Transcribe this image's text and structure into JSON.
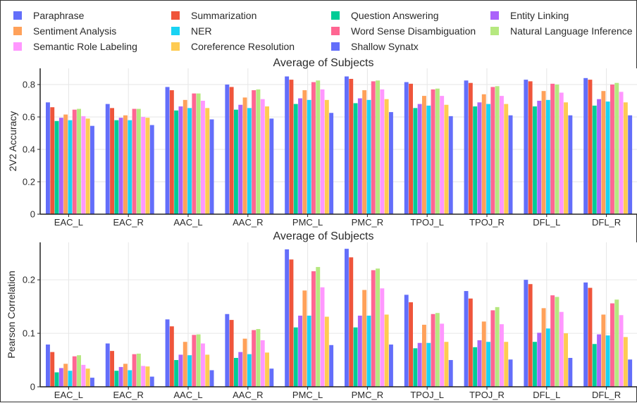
{
  "legend": [
    {
      "name": "Paraphrase",
      "color": "#636efa"
    },
    {
      "name": "Summarization",
      "color": "#ef553b"
    },
    {
      "name": "Question Answering",
      "color": "#00cc96"
    },
    {
      "name": "Entity Linking",
      "color": "#ab63fa"
    },
    {
      "name": "Sentiment Analysis",
      "color": "#ffa15a"
    },
    {
      "name": "NER",
      "color": "#19d3f3"
    },
    {
      "name": "Word Sense Disambiguation",
      "color": "#ff6692"
    },
    {
      "name": "Natural Language Inference",
      "color": "#b6e880"
    },
    {
      "name": "Semantic Role Labeling",
      "color": "#ff97ff"
    },
    {
      "name": "Coreference Resolution",
      "color": "#fecb52"
    },
    {
      "name": "Shallow Synatx",
      "color": "#636efa"
    }
  ],
  "chart_data": [
    {
      "type": "bar",
      "title": "Average of Subjects",
      "xlabel": "",
      "ylabel": "2V2 Accuracy",
      "ylim": [
        0,
        0.9
      ],
      "yticks": [
        0,
        0.2,
        0.4,
        0.6,
        0.8
      ],
      "ytick_labels": [
        "0",
        "0.2",
        "0.4",
        "0.6",
        "0.8"
      ],
      "categories": [
        "EAC_L",
        "EAC_R",
        "AAC_L",
        "AAC_R",
        "PMC_L",
        "PMC_R",
        "TPOJ_L",
        "TPOJ_R",
        "DFL_L",
        "DFL_R"
      ],
      "series": [
        {
          "name": "Paraphrase",
          "values": [
            0.69,
            0.68,
            0.785,
            0.8,
            0.85,
            0.85,
            0.815,
            0.825,
            0.83,
            0.84
          ]
        },
        {
          "name": "Summarization",
          "values": [
            0.66,
            0.655,
            0.765,
            0.785,
            0.83,
            0.835,
            0.805,
            0.81,
            0.82,
            0.83
          ]
        },
        {
          "name": "Question Answering",
          "values": [
            0.575,
            0.58,
            0.64,
            0.645,
            0.68,
            0.685,
            0.655,
            0.665,
            0.665,
            0.67
          ]
        },
        {
          "name": "Entity Linking",
          "values": [
            0.595,
            0.595,
            0.665,
            0.675,
            0.715,
            0.715,
            0.68,
            0.69,
            0.7,
            0.71
          ]
        },
        {
          "name": "Sentiment Analysis",
          "values": [
            0.615,
            0.61,
            0.705,
            0.72,
            0.765,
            0.765,
            0.73,
            0.74,
            0.76,
            0.76
          ]
        },
        {
          "name": "NER",
          "values": [
            0.58,
            0.58,
            0.655,
            0.655,
            0.705,
            0.705,
            0.67,
            0.68,
            0.705,
            0.695
          ]
        },
        {
          "name": "Word Sense Disambiguation",
          "values": [
            0.645,
            0.65,
            0.745,
            0.765,
            0.815,
            0.82,
            0.77,
            0.785,
            0.805,
            0.8
          ]
        },
        {
          "name": "Natural Language Inference",
          "values": [
            0.65,
            0.65,
            0.745,
            0.77,
            0.825,
            0.825,
            0.775,
            0.79,
            0.8,
            0.81
          ]
        },
        {
          "name": "Semantic Role Labeling",
          "values": [
            0.605,
            0.6,
            0.7,
            0.71,
            0.77,
            0.77,
            0.73,
            0.73,
            0.75,
            0.755
          ]
        },
        {
          "name": "Coreference Resolution",
          "values": [
            0.59,
            0.595,
            0.655,
            0.665,
            0.705,
            0.71,
            0.675,
            0.68,
            0.69,
            0.69
          ]
        },
        {
          "name": "Shallow Synatx",
          "values": [
            0.545,
            0.55,
            0.585,
            0.59,
            0.625,
            0.63,
            0.605,
            0.61,
            0.61,
            0.61
          ]
        }
      ]
    },
    {
      "type": "bar",
      "title": "Average of Subjects",
      "xlabel": "",
      "ylabel": "Pearson Correlation",
      "ylim": [
        0,
        0.27
      ],
      "yticks": [
        0,
        0.1,
        0.2
      ],
      "ytick_labels": [
        "0",
        "0.1",
        "0.2"
      ],
      "categories": [
        "EAC_L",
        "EAC_R",
        "AAC_L",
        "AAC_R",
        "PMC_L",
        "PMC_R",
        "TPOJ_L",
        "TPOJ_R",
        "DFL_L",
        "DFL_R"
      ],
      "series": [
        {
          "name": "Paraphrase",
          "values": [
            0.079,
            0.081,
            0.126,
            0.136,
            0.257,
            0.258,
            0.172,
            0.179,
            0.2,
            0.195
          ]
        },
        {
          "name": "Summarization",
          "values": [
            0.065,
            0.067,
            0.113,
            0.125,
            0.238,
            0.242,
            0.158,
            0.165,
            0.192,
            0.185
          ]
        },
        {
          "name": "Question Answering",
          "values": [
            0.027,
            0.03,
            0.05,
            0.054,
            0.111,
            0.111,
            0.072,
            0.074,
            0.084,
            0.08
          ]
        },
        {
          "name": "Entity Linking",
          "values": [
            0.035,
            0.037,
            0.06,
            0.065,
            0.133,
            0.133,
            0.082,
            0.087,
            0.101,
            0.098
          ]
        },
        {
          "name": "Sentiment Analysis",
          "values": [
            0.043,
            0.043,
            0.084,
            0.09,
            0.18,
            0.181,
            0.116,
            0.122,
            0.147,
            0.135
          ]
        },
        {
          "name": "NER",
          "values": [
            0.03,
            0.031,
            0.059,
            0.061,
            0.133,
            0.133,
            0.082,
            0.084,
            0.109,
            0.096
          ]
        },
        {
          "name": "Word Sense Disambiguation",
          "values": [
            0.057,
            0.061,
            0.097,
            0.106,
            0.216,
            0.218,
            0.136,
            0.143,
            0.171,
            0.156
          ]
        },
        {
          "name": "Natural Language Inference",
          "values": [
            0.059,
            0.062,
            0.098,
            0.108,
            0.224,
            0.221,
            0.138,
            0.149,
            0.168,
            0.163
          ]
        },
        {
          "name": "Semantic Role Labeling",
          "values": [
            0.041,
            0.039,
            0.081,
            0.087,
            0.186,
            0.184,
            0.118,
            0.117,
            0.14,
            0.134
          ]
        },
        {
          "name": "Coreference Resolution",
          "values": [
            0.034,
            0.038,
            0.06,
            0.064,
            0.131,
            0.135,
            0.084,
            0.084,
            0.1,
            0.093
          ]
        },
        {
          "name": "Shallow Synatx",
          "values": [
            0.017,
            0.019,
            0.031,
            0.034,
            0.078,
            0.079,
            0.05,
            0.051,
            0.054,
            0.051
          ]
        }
      ]
    }
  ]
}
